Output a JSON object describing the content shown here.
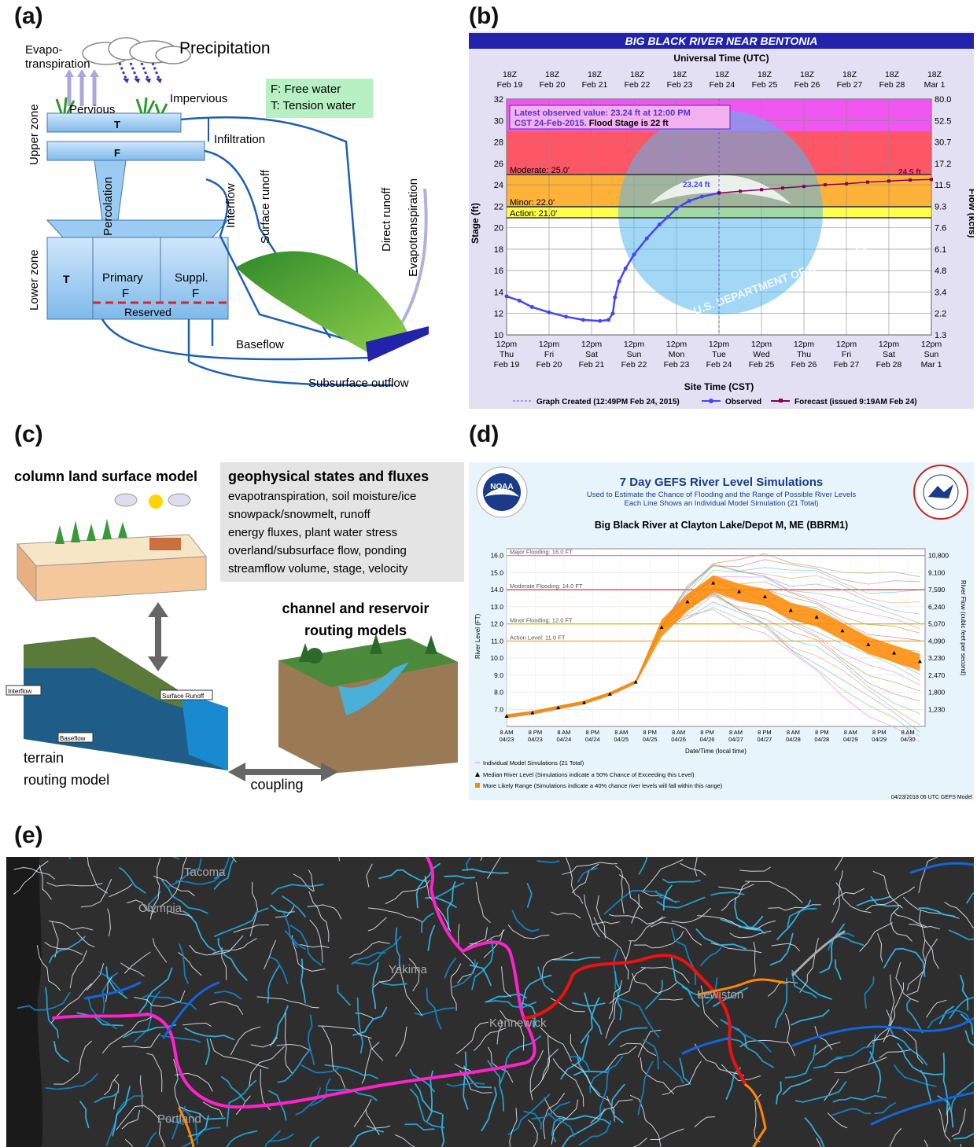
{
  "panels": {
    "a": {
      "label": "(a)",
      "texts": {
        "evapo": "Evapo-",
        "transpiration": "transpiration",
        "precipitation": "Precipitation",
        "pervious": "Pervious",
        "impervious": "Impervious",
        "legend_f": "F: Free water",
        "legend_t": "T: Tension water",
        "upper_zone": "Upper zone",
        "lower_zone": "Lower zone",
        "t_upper": "T",
        "f_upper": "F",
        "infiltration": "Infiltration",
        "percolation": "Percolation",
        "interflow": "Interflow",
        "surface_runoff": "Surface runoff",
        "direct_runoff": "Direct runoff",
        "evapotranspiration": "Evapotranspiration",
        "t_lower": "T",
        "primary": "Primary",
        "primary_f": "F",
        "suppl": "Suppl.",
        "suppl_f": "F",
        "reserved": "Reserved",
        "baseflow": "Baseflow",
        "subsurface_outflow": "Subsurface outflow"
      }
    },
    "b": {
      "label": "(b)",
      "title": "BIG BLACK RIVER NEAR BENTONIA",
      "top_axis_title": "Universal Time (UTC)",
      "top_ticks": [
        [
          "18Z",
          "Feb 19"
        ],
        [
          "18Z",
          "Feb 20"
        ],
        [
          "18Z",
          "Feb 21"
        ],
        [
          "18Z",
          "Feb 22"
        ],
        [
          "18Z",
          "Feb 23"
        ],
        [
          "18Z",
          "Feb 24"
        ],
        [
          "18Z",
          "Feb 25"
        ],
        [
          "18Z",
          "Feb 26"
        ],
        [
          "18Z",
          "Feb 27"
        ],
        [
          "18Z",
          "Feb 28"
        ],
        [
          "18Z",
          "Mar 1"
        ]
      ],
      "bottom_ticks": [
        [
          "12pm",
          "Thu",
          "Feb 19"
        ],
        [
          "12pm",
          "Fri",
          "Feb 20"
        ],
        [
          "12pm",
          "Sat",
          "Feb 21"
        ],
        [
          "12pm",
          "Sun",
          "Feb 22"
        ],
        [
          "12pm",
          "Mon",
          "Feb 23"
        ],
        [
          "12pm",
          "Tue",
          "Feb 24"
        ],
        [
          "12pm",
          "Wed",
          "Feb 25"
        ],
        [
          "12pm",
          "Thu",
          "Feb 26"
        ],
        [
          "12pm",
          "Fri",
          "Feb 27"
        ],
        [
          "12pm",
          "Sat",
          "Feb 28"
        ],
        [
          "12pm",
          "Sun",
          "Mar 1"
        ]
      ],
      "xlabel": "Site Time (CST)",
      "ylabel": "Stage (ft)",
      "y2label": "Flow (kcfs)",
      "yticks": [
        "10",
        "12",
        "14",
        "16",
        "18",
        "20",
        "22",
        "24",
        "26",
        "28",
        "30",
        "32"
      ],
      "y2ticks": [
        "1.3",
        "2.2",
        "3.4",
        "4.8",
        "6.1",
        "7.6",
        "9.3",
        "11.5",
        "17.2",
        "30.7",
        "52.5",
        "80.0"
      ],
      "annotation_line1": "Latest observed value: 23.24 ft at 12:00 PM",
      "annotation_line2a": "CST 24-Feb-2015.",
      "annotation_line2b": " Flood Stage is 22 ft",
      "moderate_label": "Moderate: 25.0'",
      "minor_label": "Minor: 22.0'",
      "action_label": "Action: 21.0'",
      "obs_label": "23.24 ft",
      "fcst_label": "24.5 ft",
      "legend_created": "Graph Created (12:49PM Feb 24, 2015)",
      "legend_observed": "Observed",
      "legend_forecast": "Forecast (issued 9:19AM Feb 24)",
      "watermark_1": "U.S. DEPARTMENT OF COMMERCE",
      "watermark_2": "NATIONAL OCEANIC AND ATMOSPHERIC ADMINISTRATION",
      "colors": {
        "major": "#ee44ee",
        "moderate": "#ff4444",
        "minor": "#ff9900",
        "action": "#ffff00",
        "observed": "#4444ff",
        "forecast": "#880055",
        "frame": "#2222aa"
      }
    },
    "c": {
      "label": "(c)",
      "column_title": "column land surface model",
      "geo_title": "geophysical states and fluxes",
      "geo_lines": [
        "evapotranspiration, soil moisture/ice",
        "snowpack/snowmelt, runoff",
        "energy fluxes, plant water stress",
        "overland/subsurface flow, ponding",
        "streamflow volume, stage, velocity"
      ],
      "channel_title_1": "channel and reservoir",
      "channel_title_2": "routing models",
      "terrain_1": "terrain",
      "terrain_2": "routing model",
      "coupling": "coupling",
      "small_interflow": "Interflow",
      "small_surface": "Surface Runoff",
      "small_baseflow": "Baseflow"
    },
    "d": {
      "label": "(d)",
      "title": "7 Day GEFS River Level Simulations",
      "subtitle_1": "Used to Estimate the Chance of Flooding and the Range of Possible River Levels",
      "subtitle_2": "Each Line Shows an Individual Model Simulation (21 Total)",
      "station": "Big Black River at Clayton Lake/Depot M, ME (BBRM1)",
      "noaa_logo": "NOAA",
      "nws_logo": "NATIONAL WEATHER SERVICE",
      "major": "Major Flooding: 16.0 FT",
      "moderate": "Moderate Flooding: 14.0 FT",
      "minor": "Minor Flooding: 12.0 FT",
      "action": "Action Level: 11.0 FT",
      "ylabel": "River Level (FT)",
      "y2label": "River Flow (cubic feet per second)",
      "xlabel": "Date/Time (local time)",
      "yticks": [
        "7.0",
        "8.0",
        "9.0",
        "10.0",
        "11.0",
        "12.0",
        "13.0",
        "14.0",
        "15.0",
        "16.0"
      ],
      "y2ticks": [
        "1,230",
        "1,800",
        "2,470",
        "3,230",
        "4,090",
        "5,070",
        "6,240",
        "7,590",
        "9,100",
        "10,800"
      ],
      "xticks": [
        [
          "8 AM",
          "04/23"
        ],
        [
          "8 PM",
          "04/23"
        ],
        [
          "8 AM",
          "04/24"
        ],
        [
          "8 PM",
          "04/24"
        ],
        [
          "8 AM",
          "04/25"
        ],
        [
          "8 PM",
          "04/25"
        ],
        [
          "8 AM",
          "04/26"
        ],
        [
          "8 PM",
          "04/26"
        ],
        [
          "8 AM",
          "04/27"
        ],
        [
          "8 PM",
          "04/27"
        ],
        [
          "8 AM",
          "04/28"
        ],
        [
          "8 PM",
          "04/28"
        ],
        [
          "8 AM",
          "04/29"
        ],
        [
          "8 PM",
          "04/29"
        ],
        [
          "8 AM",
          "04/30"
        ]
      ],
      "legend_1": "Individual Model Simulations (21 Total)",
      "legend_2": "Median River Level (Simulations indicate a 50% Chance of Exceeding this Level)",
      "legend_3": "More Likely Range (Simulations indicate a 40% chance river levels will fall within this range)",
      "footer": "04/23/2018 06 UTC GEFS Model",
      "colors": {
        "major": "#dd66dd",
        "moderate": "#dd3333",
        "minor": "#ddaa00",
        "action": "#eeaa44",
        "range": "#ff8800",
        "median": "#000000"
      }
    },
    "e": {
      "label": "(e)",
      "cities": [
        "Tacoma",
        "Olympia",
        "Yakima",
        "Kennewick",
        "Lewiston",
        "Portland"
      ],
      "colors": {
        "background": "#2e2e2e",
        "pink": "#ff22cc",
        "red": "#ee0000",
        "orange": "#ff8800",
        "blue": "#1166dd",
        "cyan": "#22aadd",
        "white": "#dde6ee"
      }
    }
  }
}
